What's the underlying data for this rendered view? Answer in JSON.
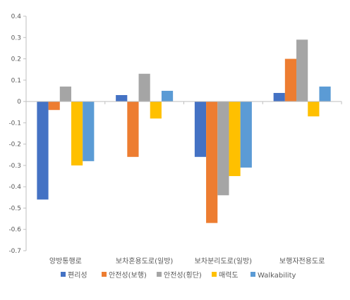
{
  "chart_data": {
    "type": "bar",
    "categories": [
      "양방통행로",
      "보차혼용도로(일방)",
      "보차분리도로(일방)",
      "보행자전용도로"
    ],
    "series": [
      {
        "name": "편리성",
        "color": "#4472C4",
        "values": [
          -0.46,
          0.03,
          -0.26,
          0.04
        ]
      },
      {
        "name": "안전성(보행)",
        "color": "#ED7D31",
        "values": [
          -0.04,
          -0.26,
          -0.57,
          0.2
        ]
      },
      {
        "name": "안전성(횡단)",
        "color": "#A5A5A5",
        "values": [
          0.07,
          0.13,
          -0.44,
          0.29
        ]
      },
      {
        "name": "매력도",
        "color": "#FFC000",
        "values": [
          -0.3,
          -0.08,
          -0.35,
          -0.07
        ]
      },
      {
        "name": "Walkability",
        "color": "#5B9BD5",
        "values": [
          -0.28,
          0.05,
          -0.31,
          0.07
        ]
      }
    ],
    "ylim": [
      -0.7,
      0.4
    ],
    "y_ticks": [
      "0.4",
      "0.3",
      "0.2",
      "0.1",
      "0",
      "-0.1",
      "-0.2",
      "-0.3",
      "-0.4",
      "-0.5",
      "-0.6",
      "-0.7"
    ],
    "title": "",
    "xlabel": "",
    "ylabel": "",
    "grid": false,
    "legend_position": "bottom"
  }
}
